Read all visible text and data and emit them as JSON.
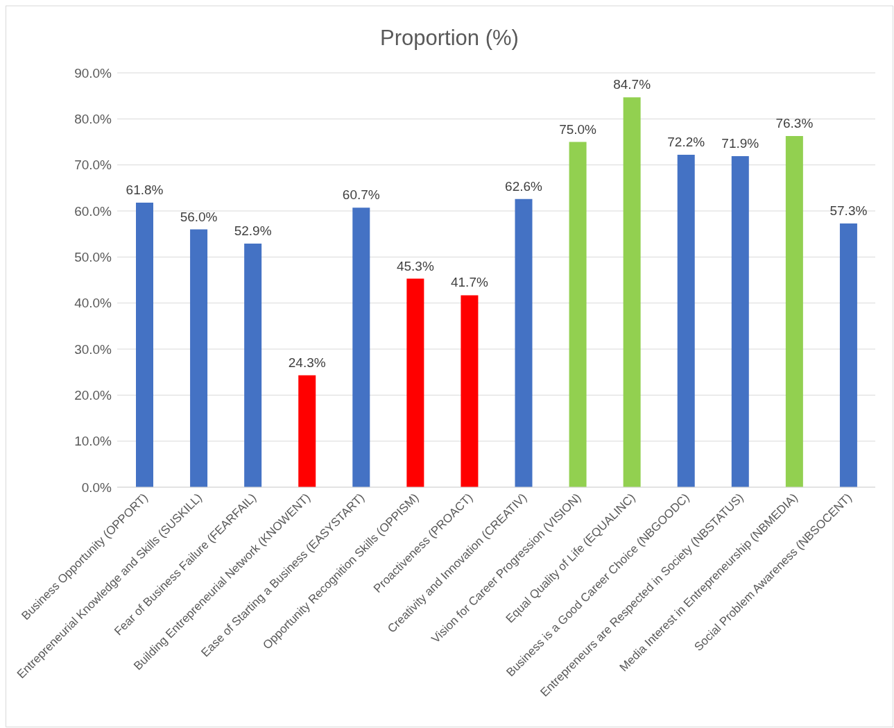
{
  "chart_data": {
    "type": "bar",
    "title": "Proportion (%)",
    "categories": [
      "Business Opportunity (OPPORT)",
      "Entrepreneurial Knowledge and Skills (SUSKILL)",
      "Fear of Business Failure (FEARFAIL)",
      "Building Entrepreneurial Network (KNOWENT)",
      "Ease of Starting a Business (EASYSTART)",
      "Opportunity Recognition Skills (OPPISM)",
      "Proactiveness (PROACT)",
      "Creativity and Innovation (CREATIV)",
      "Vision for Career Progression (VISION)",
      "Equal Quality of Life (EQUALINC)",
      "Business is a Good Career Choice (NBGOODC)",
      "Entrepreneurs are Respected in Society (NBSTATUS)",
      "Media Interest in Entrepreneurship (NBMEDIA)",
      "Social Problem Awareness (NBSOCENT)"
    ],
    "values": [
      61.8,
      56.0,
      52.9,
      24.3,
      60.7,
      45.3,
      41.7,
      62.6,
      75.0,
      84.7,
      72.2,
      71.9,
      76.3,
      57.3
    ],
    "value_labels": [
      "61.8%",
      "56.0%",
      "52.9%",
      "24.3%",
      "60.7%",
      "45.3%",
      "41.7%",
      "62.6%",
      "75.0%",
      "84.7%",
      "72.2%",
      "71.9%",
      "76.3%",
      "57.3%"
    ],
    "colors": [
      "#4472c4",
      "#4472c4",
      "#4472c4",
      "#ff0000",
      "#4472c4",
      "#ff0000",
      "#ff0000",
      "#4472c4",
      "#92d050",
      "#92d050",
      "#4472c4",
      "#4472c4",
      "#92d050",
      "#4472c4"
    ],
    "ylim": [
      0,
      90
    ],
    "yticks": [
      {
        "value": 0,
        "label": "0.0%"
      },
      {
        "value": 10,
        "label": "10.0%"
      },
      {
        "value": 20,
        "label": "20.0%"
      },
      {
        "value": 30,
        "label": "30.0%"
      },
      {
        "value": 40,
        "label": "40.0%"
      },
      {
        "value": 50,
        "label": "50.0%"
      },
      {
        "value": 60,
        "label": "60.0%"
      },
      {
        "value": 70,
        "label": "70.0%"
      },
      {
        "value": 80,
        "label": "80.0%"
      },
      {
        "value": 90,
        "label": "90.0%"
      }
    ],
    "grid": "y",
    "legend": false
  }
}
